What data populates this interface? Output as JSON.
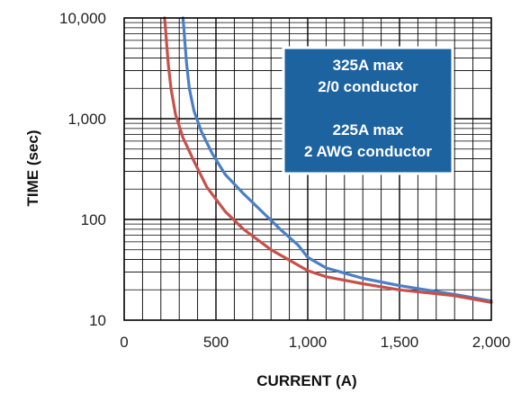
{
  "chart_data": {
    "type": "line",
    "xlabel": "CURRENT (A)",
    "ylabel": "TIME (sec)",
    "xlim": [
      0,
      2000
    ],
    "ylim": [
      10,
      10000
    ],
    "y_scale": "log",
    "grid": true,
    "x_ticks": [
      {
        "value": 0,
        "label": "0"
      },
      {
        "value": 500,
        "label": "500"
      },
      {
        "value": 1000,
        "label": "1,000"
      },
      {
        "value": 1500,
        "label": "1,500"
      },
      {
        "value": 2000,
        "label": "2,000"
      }
    ],
    "y_ticks": [
      {
        "value": 10,
        "label": "10"
      },
      {
        "value": 100,
        "label": "100"
      },
      {
        "value": 1000,
        "label": "1,000"
      },
      {
        "value": 10000,
        "label": "10,000"
      }
    ],
    "annotation": {
      "lines": [
        "325A max",
        "2/0 conductor",
        "",
        "225A max",
        "2 AWG conductor"
      ],
      "background": "#1d63a0",
      "text_color": "#ffffff"
    },
    "series": [
      {
        "color": "#4a80c4",
        "x": [
          320,
          325,
          330,
          340,
          355,
          380,
          420,
          480,
          550,
          650,
          750,
          850,
          950,
          1000,
          1100,
          1300,
          1500,
          1800,
          2000
        ],
        "y": [
          10000,
          8000,
          6000,
          3500,
          2000,
          1200,
          750,
          450,
          280,
          180,
          120,
          80,
          55,
          42,
          33,
          26,
          22,
          18,
          15.5
        ]
      },
      {
        "color": "#c8504a",
        "x": [
          220,
          225,
          230,
          240,
          255,
          280,
          320,
          380,
          450,
          550,
          650,
          800,
          950,
          1000,
          1100,
          1300,
          1500,
          1800,
          2000
        ],
        "y": [
          10000,
          8000,
          6000,
          3500,
          2000,
          1100,
          650,
          380,
          210,
          120,
          80,
          50,
          35,
          31,
          27,
          23,
          20,
          17.5,
          15
        ]
      }
    ]
  }
}
